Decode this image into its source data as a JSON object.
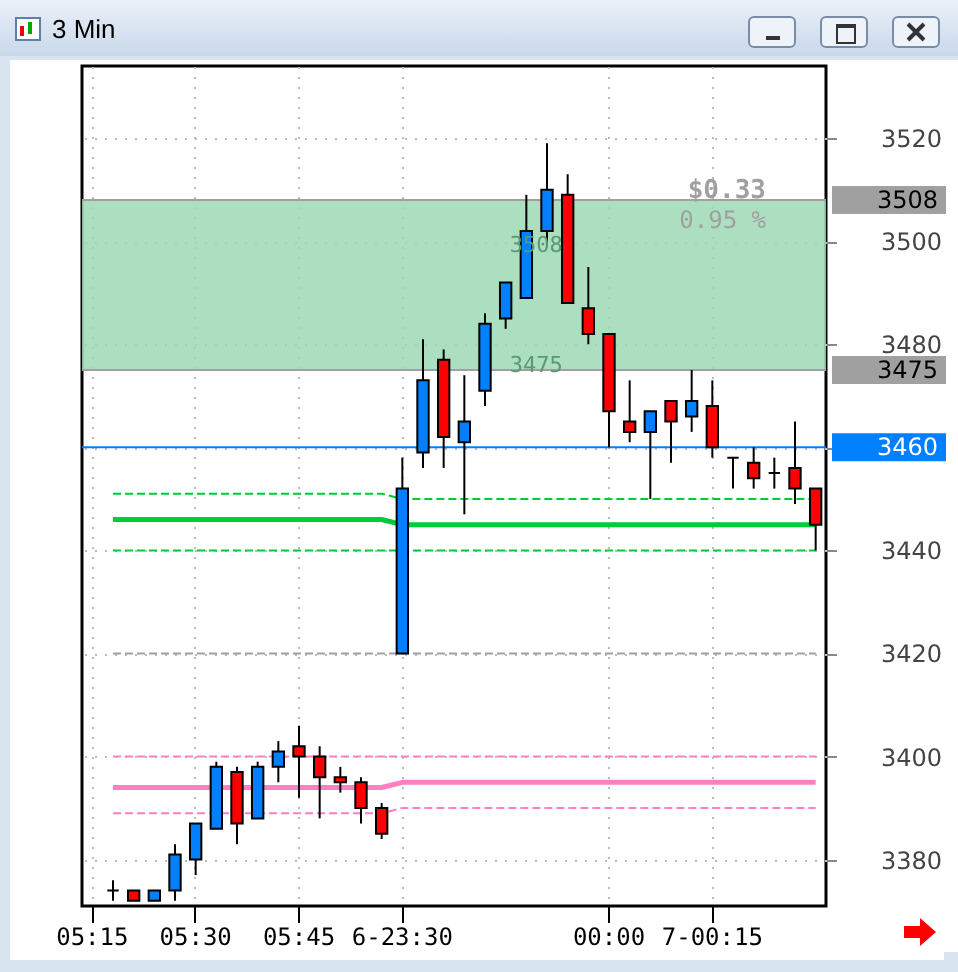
{
  "chart_data": {
    "type": "candlestick",
    "title": "3 Min",
    "categories": [
      "05:15",
      null,
      null,
      null,
      null,
      "05:30",
      null,
      null,
      null,
      null,
      "05:45",
      null,
      null,
      null,
      null,
      "6-23:30",
      null,
      null,
      null,
      null,
      null,
      null,
      null,
      null,
      null,
      "00:00",
      null,
      null,
      null,
      null,
      "7-00:15",
      null,
      null,
      null,
      null,
      null
    ],
    "ohlc": [
      null,
      [
        3374,
        3376,
        3372,
        3374
      ],
      [
        3374,
        3374,
        3372,
        3372
      ],
      [
        3372,
        3374,
        3372,
        3374
      ],
      [
        3374,
        3383,
        3372,
        3381
      ],
      [
        3380,
        3387,
        3377,
        3387
      ],
      [
        3386,
        3399,
        3386,
        3398
      ],
      [
        3397,
        3398,
        3383,
        3387
      ],
      [
        3388,
        3399,
        3388,
        3398
      ],
      [
        3398,
        3403,
        3395,
        3401
      ],
      [
        3402,
        3406,
        3392,
        3400
      ],
      [
        3400,
        3402,
        3388,
        3396
      ],
      [
        3396,
        3398,
        3393,
        3395
      ],
      [
        3395,
        3396,
        3387,
        3390
      ],
      [
        3390,
        3391,
        3384,
        3385
      ],
      [
        3420,
        3458,
        3420,
        3452
      ],
      [
        3459,
        3481,
        3456,
        3473
      ],
      [
        3477,
        3479,
        3456,
        3462
      ],
      [
        3461,
        3474,
        3447,
        3465
      ],
      [
        3471,
        3486,
        3468,
        3484
      ],
      [
        3485,
        3492,
        3483,
        3492
      ],
      [
        3489,
        3509,
        3489,
        3502
      ],
      [
        3502,
        3519,
        3499,
        3510
      ],
      [
        3509,
        3513,
        3488,
        3488
      ],
      [
        3487,
        3495,
        3480,
        3482
      ],
      [
        3482,
        3482,
        3460,
        3467
      ],
      [
        3465,
        3473,
        3461,
        3463
      ],
      [
        3463,
        3467,
        3450,
        3467
      ],
      [
        3469,
        3469,
        3457,
        3465
      ],
      [
        3466,
        3475,
        3463,
        3469
      ],
      [
        3468,
        3473,
        3458,
        3460
      ],
      [
        3458,
        3458,
        3452,
        3458
      ],
      [
        3457,
        3460,
        3452,
        3454
      ],
      [
        3455,
        3458,
        3452,
        3455
      ],
      [
        3456,
        3465,
        3449,
        3452
      ],
      [
        3452,
        3452,
        3440,
        3445
      ]
    ],
    "colors": [
      null,
      "#000000",
      "#ff0000",
      "#0080ff",
      "#0080ff",
      "#0080ff",
      "#0080ff",
      "#ff0000",
      "#0080ff",
      "#0080ff",
      "#ff0000",
      "#ff0000",
      "#ff0000",
      "#ff0000",
      "#ff0000",
      "#0080ff",
      "#0080ff",
      "#ff0000",
      "#0080ff",
      "#0080ff",
      "#0080ff",
      "#0080ff",
      "#0080ff",
      "#ff0000",
      "#ff0000",
      "#ff0000",
      "#ff0000",
      "#0080ff",
      "#ff0000",
      "#0080ff",
      "#ff0000",
      "#000000",
      "#ff0000",
      "#000000",
      "#ff0000",
      "#ff0000"
    ],
    "series": [
      {
        "type": "line",
        "color": "#00cc33",
        "line_style": "solid",
        "values": [
          null,
          3446,
          3446,
          3446,
          3446,
          3446,
          3446,
          3446,
          3446,
          3446,
          3446,
          3446,
          3446,
          3446,
          3446,
          3445,
          3445,
          3445,
          3445,
          3445,
          3445,
          3445,
          3445,
          3445,
          3445,
          3445,
          3445,
          3445,
          3445,
          3445,
          3445,
          3445,
          3445,
          3445,
          3445,
          3445
        ]
      },
      {
        "type": "line",
        "color": "#00cc33",
        "line_style": "dashed",
        "values": [
          null,
          3451,
          3451,
          3451,
          3451,
          3451,
          3451,
          3451,
          3451,
          3451,
          3451,
          3451,
          3451,
          3451,
          3451,
          3450,
          3450,
          3450,
          3450,
          3450,
          3450,
          3450,
          3450,
          3450,
          3450,
          3450,
          3450,
          3450,
          3450,
          3450,
          3450,
          3450,
          3450,
          3450,
          3450,
          3450
        ]
      },
      {
        "type": "line",
        "color": "#00cc33",
        "line_style": "dashed",
        "values": [
          null,
          3440,
          3440,
          3440,
          3440,
          3440,
          3440,
          3440,
          3440,
          3440,
          3440,
          3440,
          3440,
          3440,
          3440,
          3440,
          3440,
          3440,
          3440,
          3440,
          3440,
          3440,
          3440,
          3440,
          3440,
          3440,
          3440,
          3440,
          3440,
          3440,
          3440,
          3440,
          3440,
          3440,
          3440,
          3440
        ]
      },
      {
        "type": "line",
        "color": "#a0a0a0",
        "line_style": "dashed",
        "values": [
          null,
          3420,
          3420,
          3420,
          3420,
          3420,
          3420,
          3420,
          3420,
          3420,
          3420,
          3420,
          3420,
          3420,
          3420,
          3420,
          3420,
          3420,
          3420,
          3420,
          3420,
          3420,
          3420,
          3420,
          3420,
          3420,
          3420,
          3420,
          3420,
          3420,
          3420,
          3420,
          3420,
          3420,
          3420,
          3420
        ]
      },
      {
        "type": "line",
        "color": "#ff80c0",
        "line_style": "solid",
        "values": [
          null,
          3394,
          3394,
          3394,
          3394,
          3394,
          3394,
          3394,
          3394,
          3394,
          3394,
          3394,
          3394,
          3394,
          3394,
          3395,
          3395,
          3395,
          3395,
          3395,
          3395,
          3395,
          3395,
          3395,
          3395,
          3395,
          3395,
          3395,
          3395,
          3395,
          3395,
          3395,
          3395,
          3395,
          3395,
          3395
        ]
      },
      {
        "type": "line",
        "color": "#ff80c0",
        "line_style": "dashed",
        "values": [
          null,
          3400,
          3400,
          3400,
          3400,
          3400,
          3400,
          3400,
          3400,
          3400,
          3400,
          3400,
          3400,
          3400,
          3400,
          3400,
          3400,
          3400,
          3400,
          3400,
          3400,
          3400,
          3400,
          3400,
          3400,
          3400,
          3400,
          3400,
          3400,
          3400,
          3400,
          3400,
          3400,
          3400,
          3400,
          3400
        ]
      },
      {
        "type": "line",
        "color": "#ff80c0",
        "line_style": "dashed",
        "values": [
          null,
          3389,
          3389,
          3389,
          3389,
          3389,
          3389,
          3389,
          3389,
          3389,
          3389,
          3389,
          3389,
          3389,
          3389,
          3390,
          3390,
          3390,
          3390,
          3390,
          3390,
          3390,
          3390,
          3390,
          3390,
          3390,
          3390,
          3390,
          3390,
          3390,
          3390,
          3390,
          3390,
          3390,
          3390,
          3390
        ]
      }
    ],
    "ylim": [
      3371,
      3534
    ],
    "yticks": [
      3380,
      3400,
      3420,
      3440,
      {
        "value": 3460,
        "label": null
      },
      3480,
      3500,
      3520
    ],
    "grid": true,
    "ref_lines": [
      {
        "axis": "y",
        "value": 3460,
        "label": "3460",
        "color": "#0080ff"
      },
      {
        "axis": "y",
        "value": 3508,
        "label": "3508",
        "color": "#a0a0a0"
      },
      {
        "axis": "y",
        "value": 3475,
        "label": "3475",
        "color": "#a0a0a0"
      }
    ],
    "bands": [
      {
        "axis": "y",
        "from": 3475,
        "to": 3508,
        "color": "#9dd9b5"
      }
    ],
    "annotations": [
      "$0.33",
      "0.95 %",
      "3508",
      "3475"
    ]
  }
}
